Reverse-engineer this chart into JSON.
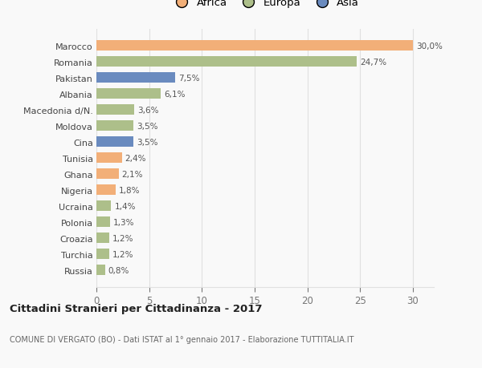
{
  "categories": [
    "Russia",
    "Turchia",
    "Croazia",
    "Polonia",
    "Ucraina",
    "Nigeria",
    "Ghana",
    "Tunisia",
    "Cina",
    "Moldova",
    "Macedonia d/N.",
    "Albania",
    "Pakistan",
    "Romania",
    "Marocco"
  ],
  "values": [
    0.8,
    1.2,
    1.2,
    1.3,
    1.4,
    1.8,
    2.1,
    2.4,
    3.5,
    3.5,
    3.6,
    6.1,
    7.5,
    24.7,
    30.0
  ],
  "continents": [
    "Europa",
    "Europa",
    "Europa",
    "Europa",
    "Europa",
    "Africa",
    "Africa",
    "Africa",
    "Asia",
    "Europa",
    "Europa",
    "Europa",
    "Asia",
    "Europa",
    "Africa"
  ],
  "colors": {
    "Africa": "#F2AF78",
    "Europa": "#ADBF8A",
    "Asia": "#6A8BBF"
  },
  "label_strings": [
    "0,8%",
    "1,2%",
    "1,2%",
    "1,3%",
    "1,4%",
    "1,8%",
    "2,1%",
    "2,4%",
    "3,5%",
    "3,5%",
    "3,6%",
    "6,1%",
    "7,5%",
    "24,7%",
    "30,0%"
  ],
  "title": "Cittadini Stranieri per Cittadinanza - 2017",
  "subtitle": "COMUNE DI VERGATO (BO) - Dati ISTAT al 1° gennaio 2017 - Elaborazione TUTTITALIA.IT",
  "xlim": [
    0,
    32
  ],
  "xticks": [
    0,
    5,
    10,
    15,
    20,
    25,
    30
  ],
  "background_color": "#f9f9f9",
  "grid_color": "#e0e0e0",
  "bar_height": 0.65,
  "legend_items": [
    "Africa",
    "Europa",
    "Asia"
  ],
  "legend_colors": [
    "#F2AF78",
    "#ADBF8A",
    "#6A8BBF"
  ]
}
